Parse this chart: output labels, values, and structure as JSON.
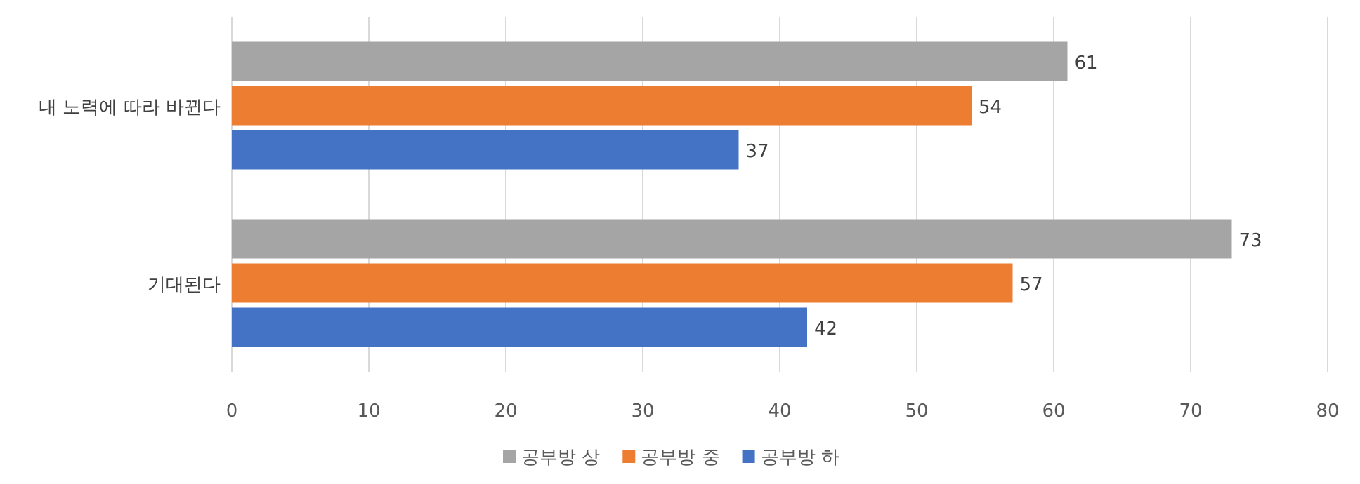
{
  "chart_data": {
    "type": "bar",
    "orientation": "horizontal",
    "categories": [
      "내 노력에 따라 바뀐다",
      "기대된다"
    ],
    "series": [
      {
        "name": "공부방 상",
        "color": "#a5a5a5",
        "values": [
          61,
          73
        ]
      },
      {
        "name": "공부방 중",
        "color": "#ed7d31",
        "values": [
          54,
          57
        ]
      },
      {
        "name": "공부방 하",
        "color": "#4472c4",
        "values": [
          37,
          42
        ]
      }
    ],
    "xlim": [
      0,
      80
    ],
    "xticks": [
      0,
      10,
      20,
      30,
      40,
      50,
      60,
      70,
      80
    ],
    "grid": "x",
    "legend": "bottom",
    "data_labels": true
  }
}
